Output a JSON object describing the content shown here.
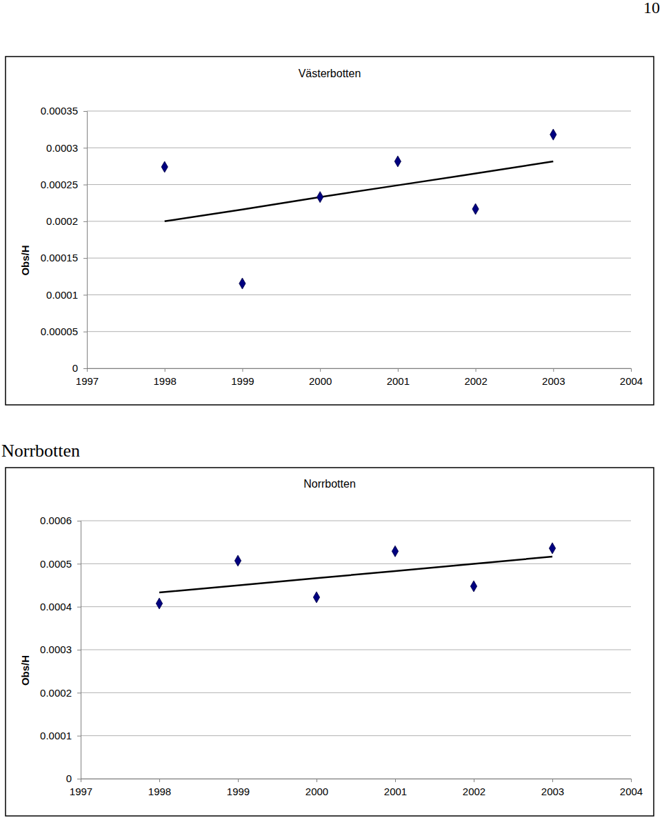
{
  "page": {
    "page_number": "10",
    "heading": "Norrbotten"
  },
  "chart_data": [
    {
      "type": "scatter",
      "title": "Västerbotten",
      "y_label": "Obs/H",
      "x": [
        1998,
        1999,
        2000,
        2001,
        2002,
        2003
      ],
      "series": [
        {
          "type": "scatter",
          "marker": "diamond",
          "color": "#000080",
          "values": [
            0.000274,
            0.0001154,
            0.000233,
            0.0002815,
            0.0002167,
            0.000318
          ]
        },
        {
          "type": "line",
          "line_style": "solid",
          "color": "#000000",
          "values": [
            0.0002,
            0.000216,
            0.000233,
            0.000249,
            0.000265,
            0.0002815
          ]
        }
      ],
      "xlim": [
        1997,
        2004
      ],
      "xticks": [
        1997,
        1998,
        1999,
        2000,
        2001,
        2002,
        2003,
        2004
      ],
      "ylim": [
        0,
        0.00035
      ],
      "yticks": [
        0,
        5e-05,
        0.0001,
        0.00015,
        0.0002,
        0.00025,
        0.0003,
        0.00035
      ],
      "grid": true
    },
    {
      "type": "scatter",
      "title": "Norrbotten",
      "y_label": "Obs/H",
      "x": [
        1998,
        1999,
        2000,
        2001,
        2002,
        2003
      ],
      "series": [
        {
          "type": "scatter",
          "marker": "diamond",
          "color": "#000080",
          "values": [
            0.0004075,
            0.000507,
            0.000422,
            0.000529,
            0.0004476,
            0.000536
          ]
        },
        {
          "type": "line",
          "line_style": "solid",
          "color": "#000000",
          "values": [
            0.000433,
            0.0004497,
            0.0004664,
            0.000483,
            0.0004998,
            0.0005166
          ]
        }
      ],
      "xlim": [
        1997,
        2004
      ],
      "xticks": [
        1997,
        1998,
        1999,
        2000,
        2001,
        2002,
        2003,
        2004
      ],
      "ylim": [
        0,
        0.0006
      ],
      "yticks": [
        0,
        0.0001,
        0.0002,
        0.0003,
        0.0004,
        0.0005,
        0.0006
      ],
      "grid": true
    }
  ]
}
